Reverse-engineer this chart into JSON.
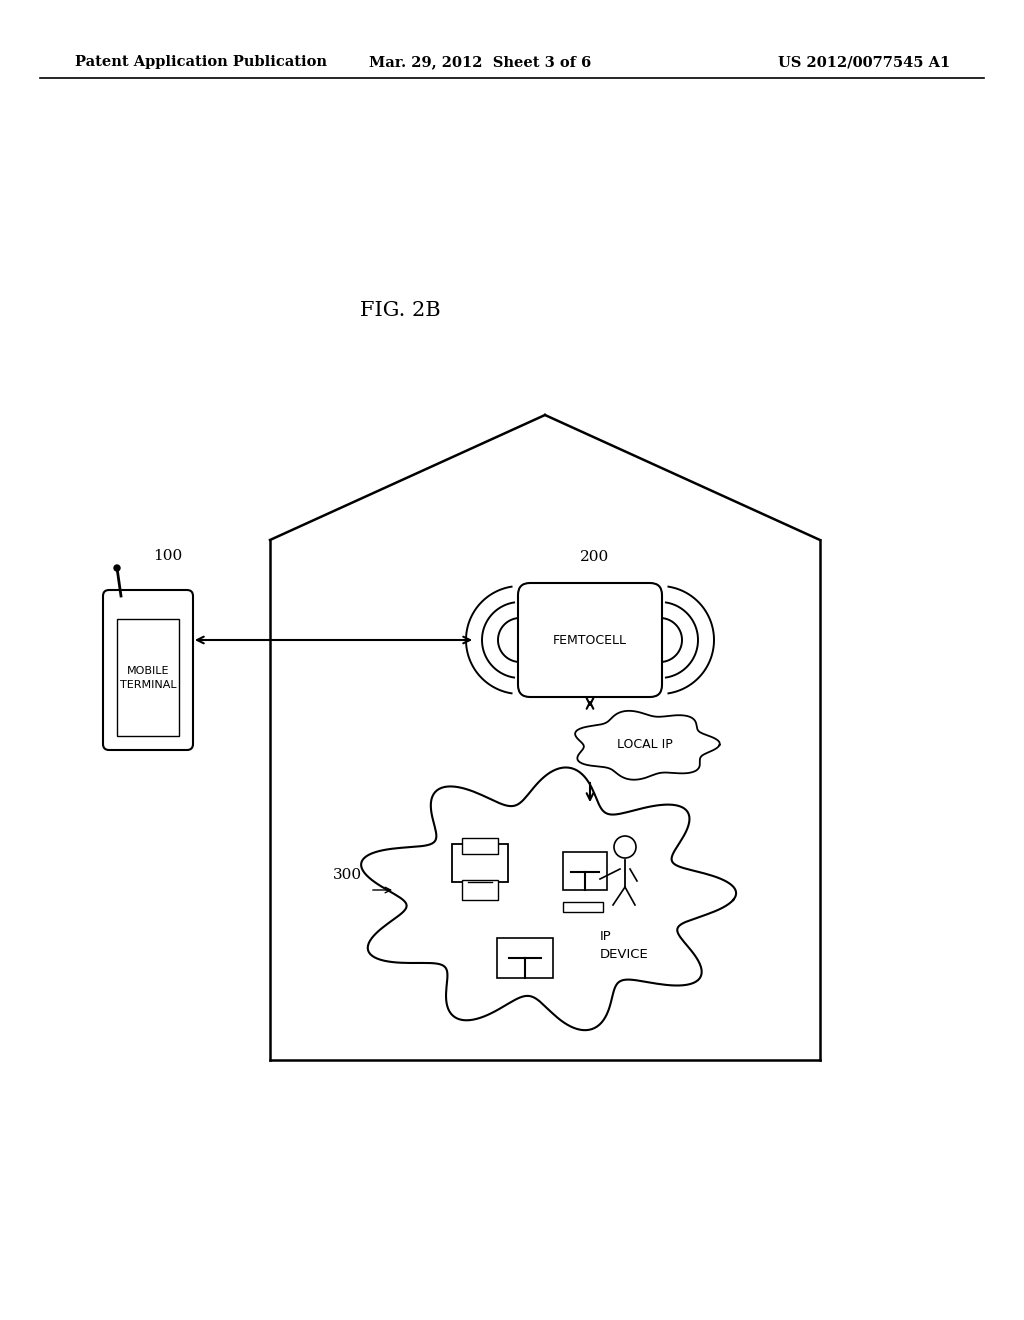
{
  "title": "FIG. 2B",
  "header_left": "Patent Application Publication",
  "header_center": "Mar. 29, 2012  Sheet 3 of 6",
  "header_right": "US 2012/0077545 A1",
  "background_color": "#ffffff",
  "text_color": "#000000",
  "label_100": "100",
  "label_200": "200",
  "label_300": "300",
  "mobile_terminal_text": "MOBILE\nTERMINAL",
  "femtocell_text": "FEMTOCELL",
  "local_ip_text": "LOCAL IP",
  "ip_device_text": "IP\nDEVICE"
}
